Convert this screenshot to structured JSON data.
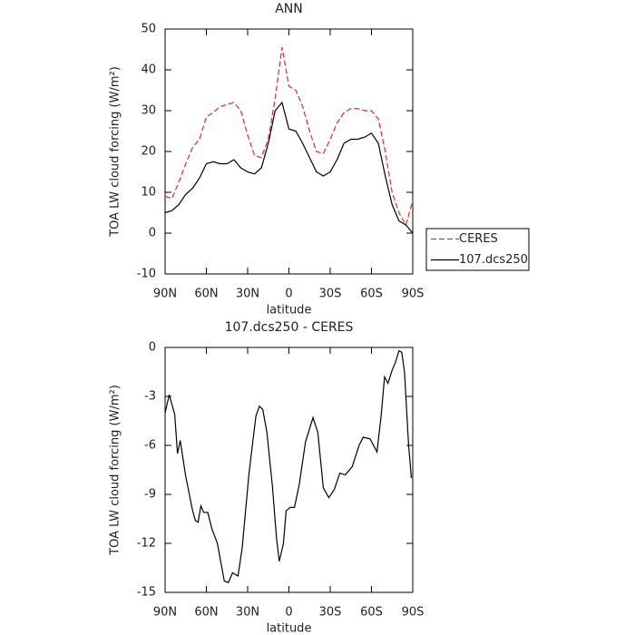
{
  "chart_data": [
    {
      "type": "line",
      "title": "ANN",
      "xlabel": "latitude",
      "ylabel": "TOA LW cloud forcing (W/m²)",
      "x": [
        90,
        85,
        80,
        75,
        70,
        65,
        60,
        55,
        50,
        45,
        40,
        35,
        30,
        25,
        20,
        15,
        10,
        5,
        0,
        -5,
        -10,
        -15,
        -20,
        -25,
        -30,
        -35,
        -40,
        -45,
        -50,
        -55,
        -60,
        -65,
        -70,
        -75,
        -80,
        -85,
        -90
      ],
      "series": [
        {
          "name": "CERES",
          "color": "#e8262b",
          "linestyle": "dashed",
          "values": [
            9,
            8.5,
            12.5,
            17,
            21,
            23,
            28.5,
            29.5,
            31,
            31.5,
            32,
            30,
            24,
            19,
            18.5,
            23,
            33,
            45.5,
            36,
            35,
            31,
            25,
            20,
            19.5,
            23,
            27,
            29.5,
            30.5,
            30.5,
            30,
            30,
            28,
            20,
            10,
            5,
            2,
            8
          ]
        },
        {
          "name": "107.dcs250",
          "color": "#000000",
          "linestyle": "solid",
          "values": [
            5,
            5.5,
            7,
            9.5,
            11,
            13.5,
            17,
            17.5,
            17,
            17,
            18,
            16,
            15,
            14.5,
            16,
            22,
            30,
            32,
            25.5,
            25,
            22,
            18.5,
            15,
            14,
            15,
            18,
            22,
            23,
            23,
            23.5,
            24.5,
            22,
            14,
            7,
            3,
            2,
            0
          ]
        }
      ],
      "xlim": [
        90,
        -90
      ],
      "xticks": [
        {
          "value": 90,
          "label": "90N"
        },
        {
          "value": 60,
          "label": "60N"
        },
        {
          "value": 30,
          "label": "30N"
        },
        0,
        {
          "value": -30,
          "label": "30S"
        },
        {
          "value": -60,
          "label": "60S"
        },
        {
          "value": -90,
          "label": "90S"
        }
      ],
      "ylim": [
        -10,
        50
      ],
      "yticks": [
        -10,
        0,
        10,
        20,
        30,
        40,
        50
      ],
      "legend": "outside-right"
    },
    {
      "type": "line",
      "title": "107.dcs250 - CERES",
      "xlabel": "latitude",
      "ylabel": "TOA LW cloud forcing (W/m²)",
      "x": [
        90,
        87,
        83,
        81,
        79,
        75,
        70,
        68,
        66,
        64,
        62,
        59,
        56,
        52,
        47,
        44,
        41,
        37,
        34,
        29,
        24,
        21.5,
        19,
        16,
        12,
        9,
        7,
        4,
        2,
        -1,
        -4,
        -7.5,
        -12,
        -17.5,
        -21,
        -25,
        -29,
        -33,
        -37,
        -41,
        -46,
        -51,
        -54,
        -59,
        -64,
        -67,
        -69.5,
        -72,
        -75,
        -77.5,
        -80,
        -82,
        -84,
        -87,
        -89
      ],
      "values": [
        -4,
        -2.9,
        -4.1,
        -6.5,
        -5.7,
        -7.9,
        -10,
        -10.6,
        -10.7,
        -9.7,
        -10.1,
        -10.1,
        -11.1,
        -12,
        -14.3,
        -14.4,
        -13.8,
        -14,
        -12.3,
        -7.7,
        -4.2,
        -3.6,
        -3.8,
        -5.2,
        -8.5,
        -11.7,
        -13.1,
        -12,
        -10,
        -9.8,
        -9.8,
        -8.4,
        -5.8,
        -4.3,
        -5.2,
        -8.6,
        -9.2,
        -8.7,
        -7.7,
        -7.8,
        -7.3,
        -6,
        -5.5,
        -5.6,
        -6.4,
        -4.2,
        -1.8,
        -2.2,
        -1.4,
        -0.9,
        -0.2,
        -0.3,
        -1.5,
        -6,
        -8
      ],
      "color": "#000000",
      "xlim": [
        90,
        -90
      ],
      "xticks": [
        {
          "value": 90,
          "label": "90N"
        },
        {
          "value": 60,
          "label": "60N"
        },
        {
          "value": 30,
          "label": "30N"
        },
        0,
        {
          "value": -30,
          "label": "30S"
        },
        {
          "value": -60,
          "label": "60S"
        },
        {
          "value": -90,
          "label": "90S"
        }
      ],
      "ylim": [
        -15,
        0
      ],
      "yticks": [
        -15,
        -12,
        -9,
        -6,
        -3,
        0
      ]
    }
  ]
}
